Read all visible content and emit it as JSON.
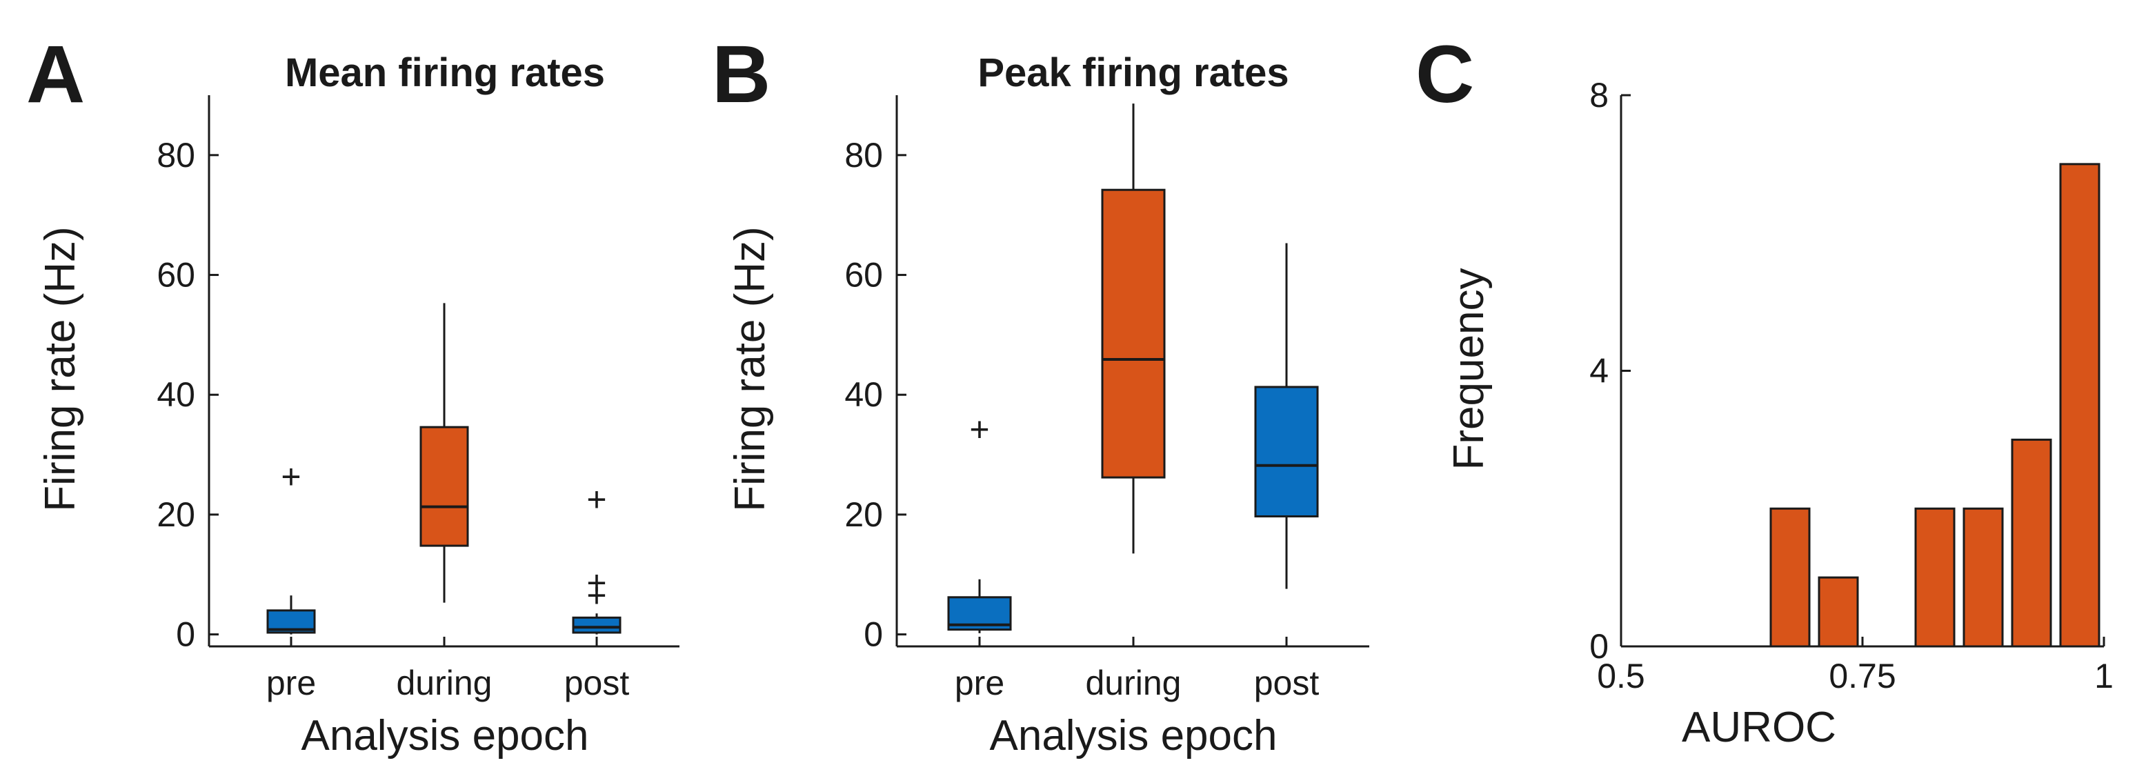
{
  "colors": {
    "pre": "#0a6fc0",
    "during": "#d85419",
    "post": "#0a6fc0",
    "bar": "#d85419",
    "ink": "#1a1a1a"
  },
  "chart_data": [
    {
      "id": "A",
      "panel_letter": "A",
      "type": "box",
      "title": "Mean firing rates",
      "xlabel": "Analysis epoch",
      "ylabel": "Firing rate (Hz)",
      "ylim": [
        -2,
        90
      ],
      "yticks": [
        0,
        20,
        40,
        60,
        80
      ],
      "ytick_labels": [
        "0",
        "20",
        "40",
        "60",
        "80"
      ],
      "categories": [
        "pre",
        "during",
        "post"
      ],
      "boxes": [
        {
          "label": "pre",
          "color_key": "pre",
          "q1": 0.3,
          "median": 0.8,
          "q3": 4,
          "whisker_low": 0,
          "whisker_high": 6.5,
          "outliers": [
            26.3
          ]
        },
        {
          "label": "during",
          "color_key": "during",
          "q1": 14.8,
          "median": 21.3,
          "q3": 34.6,
          "whisker_low": 5.3,
          "whisker_high": 55.3,
          "outliers": []
        },
        {
          "label": "post",
          "color_key": "post",
          "q1": 0.3,
          "median": 1.2,
          "q3": 2.8,
          "whisker_low": 0,
          "whisker_high": 3.5,
          "outliers": [
            6.5,
            8.6,
            22.5
          ]
        }
      ]
    },
    {
      "id": "B",
      "panel_letter": "B",
      "type": "box",
      "title": "Peak firing rates",
      "xlabel": "Analysis epoch",
      "ylabel": "Firing rate (Hz)",
      "ylim": [
        -2,
        90
      ],
      "yticks": [
        0,
        20,
        40,
        60,
        80
      ],
      "ytick_labels": [
        "0",
        "20",
        "40",
        "60",
        "80"
      ],
      "categories": [
        "pre",
        "during",
        "post"
      ],
      "boxes": [
        {
          "label": "pre",
          "color_key": "pre",
          "q1": 0.8,
          "median": 1.6,
          "q3": 6.2,
          "whisker_low": 0.2,
          "whisker_high": 9.2,
          "outliers": [
            34.2
          ]
        },
        {
          "label": "during",
          "color_key": "during",
          "q1": 26.2,
          "median": 45.9,
          "q3": 74.2,
          "whisker_low": 13.5,
          "whisker_high": 88.6,
          "outliers": []
        },
        {
          "label": "post",
          "color_key": "post",
          "q1": 19.7,
          "median": 28.2,
          "q3": 41.3,
          "whisker_low": 7.6,
          "whisker_high": 65.3,
          "outliers": []
        }
      ]
    },
    {
      "id": "C",
      "panel_letter": "C",
      "type": "bar",
      "title": "",
      "xlabel": "AUROC",
      "ylabel": "Frequency",
      "xlim": [
        0.5,
        1.0
      ],
      "ylim": [
        0,
        8
      ],
      "xticks": [
        0.5,
        0.75,
        1.0
      ],
      "xtick_labels": [
        "0.5",
        "0.75",
        "1"
      ],
      "yticks": [
        0,
        4,
        8
      ],
      "ytick_labels": [
        "0",
        "4",
        "8"
      ],
      "bin_width": 0.05,
      "bin_centers": [
        0.675,
        0.725,
        0.825,
        0.875,
        0.925,
        0.975
      ],
      "values": [
        2,
        1,
        2,
        2,
        3,
        7
      ]
    }
  ]
}
